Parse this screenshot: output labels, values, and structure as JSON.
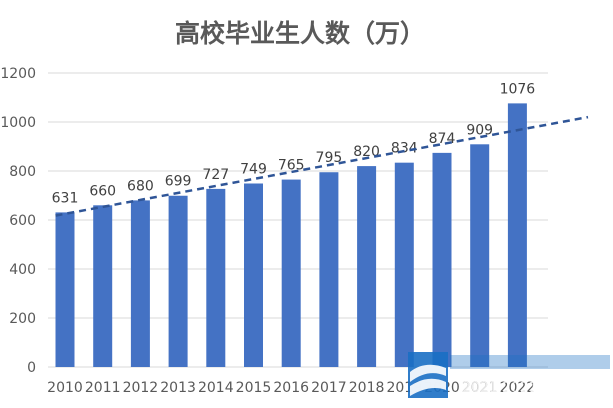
{
  "chart_data": {
    "type": "bar",
    "title": "高校毕业生人数（万）",
    "categories": [
      "2010",
      "2011",
      "2012",
      "2013",
      "2014",
      "2015",
      "2016",
      "2017",
      "2018",
      "2019",
      "2020",
      "2021",
      "2022"
    ],
    "values": [
      631,
      660,
      680,
      699,
      727,
      749,
      765,
      795,
      820,
      834,
      874,
      909,
      1076
    ],
    "data_labels": [
      "631",
      "660",
      "680",
      "699",
      "727",
      "749",
      "765",
      "795",
      "820",
      "834",
      "874",
      "909",
      "1076"
    ],
    "ylim": [
      0,
      1200
    ],
    "yticks": [
      0,
      200,
      400,
      600,
      800,
      1000,
      1200
    ],
    "ytick_labels": [
      "0",
      "200",
      "400",
      "600",
      "800",
      "1000",
      "1200"
    ],
    "xlabel": "",
    "ylabel": "",
    "grid": true,
    "trendline": {
      "style": "dashed",
      "type": "linear",
      "y_start": 618,
      "y_end": 1020
    },
    "colors": {
      "bar": "#4472C4",
      "trend": "#2F5597",
      "grid": "#D9D9D9",
      "text": "#595959"
    }
  },
  "watermark": {
    "text": "2021 2021"
  }
}
